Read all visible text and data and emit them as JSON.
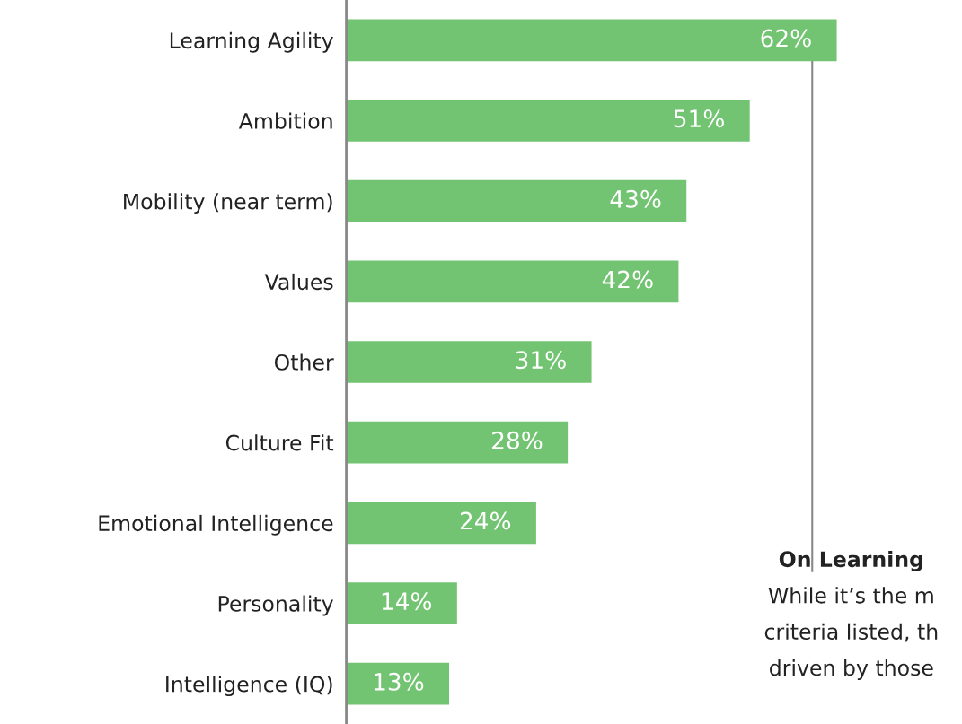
{
  "chart_data": {
    "type": "bar",
    "orientation": "horizontal",
    "categories": [
      "Learning Agility",
      "Ambition",
      "Mobility (near term)",
      "Values",
      "Other",
      "Culture Fit",
      "Emotional Intelligence",
      "Personality",
      "Intelligence (IQ)"
    ],
    "values": [
      62,
      51,
      43,
      42,
      31,
      28,
      24,
      14,
      13
    ],
    "value_labels": [
      "62%",
      "51%",
      "43%",
      "42%",
      "31%",
      "28%",
      "24%",
      "14%",
      "13%"
    ],
    "color": "#72c472",
    "annotations": [
      "On Learning",
      "While it’s the m",
      "criteria listed, th",
      "driven by those"
    ]
  }
}
